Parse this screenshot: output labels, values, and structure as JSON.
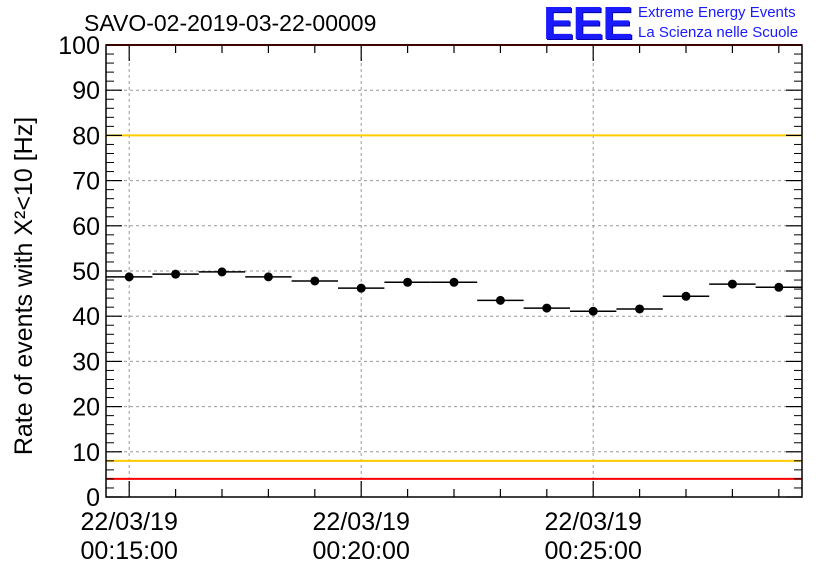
{
  "header": {
    "title": "SAVO-02-2019-03-22-00009",
    "logo_text": "EEE",
    "logo_line1": "Extreme Energy Events",
    "logo_line2": "La Scienza nelle Scuole"
  },
  "chart_data": {
    "type": "scatter",
    "ylabel": "Rate of events with X²<10 [Hz]",
    "ylim": [
      0,
      100
    ],
    "y_ticks": [
      "0",
      "10",
      "20",
      "30",
      "40",
      "50",
      "60",
      "70",
      "80",
      "90",
      "100"
    ],
    "x_ticks": [
      {
        "date": "22/03/19",
        "time": "00:15:00"
      },
      {
        "date": "22/03/19",
        "time": "00:20:00"
      },
      {
        "date": "22/03/19",
        "time": "00:25:00"
      }
    ],
    "grid": true,
    "series": [
      {
        "x": [
          "00:15:00",
          "00:16:00",
          "00:17:00",
          "00:18:00",
          "00:19:00",
          "00:20:00",
          "00:21:00",
          "00:22:00",
          "00:23:00",
          "00:24:00",
          "00:25:00",
          "00:26:00",
          "00:27:00",
          "00:28:00",
          "00:29:00"
        ],
        "values": [
          48.7,
          49.3,
          49.8,
          48.7,
          47.8,
          46.2,
          47.5,
          47.5,
          43.5,
          41.8,
          41.1,
          41.6,
          44.4,
          47.1,
          46.4
        ],
        "color": "#000000"
      }
    ],
    "reference_lines": [
      {
        "y": 100,
        "color": "#ff0000"
      },
      {
        "y": 80,
        "color": "#ffcc00"
      },
      {
        "y": 8,
        "color": "#ffcc00"
      },
      {
        "y": 4,
        "color": "#ff0000"
      }
    ]
  }
}
